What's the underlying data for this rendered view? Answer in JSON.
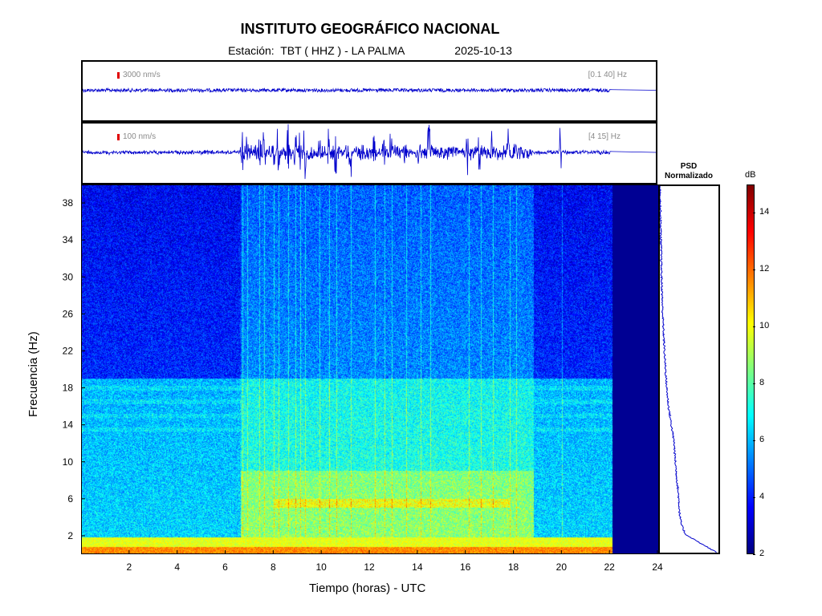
{
  "header": {
    "title": "INSTITUTO GEOGRÁFICO NACIONAL",
    "station_label": "Estación:",
    "station": "TBT ( HHZ ) - LA PALMA",
    "date": "2025-10-13"
  },
  "trace1": {
    "scale": "3000 nm/s",
    "band": "[0.1 40] Hz"
  },
  "trace2": {
    "scale": "100 nm/s",
    "band": "[4 15] Hz"
  },
  "chart_data": [
    {
      "type": "heatmap",
      "name": "spectrogram",
      "xlabel": "Tiempo (horas) - UTC",
      "ylabel": "Frecuencia  (Hz)",
      "xlim": [
        0,
        24
      ],
      "ylim": [
        0,
        40
      ],
      "x_ticks": [
        "2",
        "4",
        "6",
        "8",
        "10",
        "12",
        "14",
        "16",
        "18",
        "20",
        "22",
        "24"
      ],
      "y_ticks": [
        "2",
        "6",
        "10",
        "14",
        "18",
        "22",
        "26",
        "30",
        "34",
        "38"
      ],
      "data_end_hour": 22.1,
      "activity_window_hours": [
        6.6,
        18.8
      ],
      "transient_lines_hours": [
        6.7,
        6.9,
        7.4,
        7.6,
        8.0,
        8.2,
        8.6,
        8.9,
        9.1,
        9.3,
        9.9,
        10.3,
        10.6,
        11.2,
        12.2,
        12.6,
        12.9,
        13.5,
        14.1,
        14.5,
        16.1,
        16.6,
        17.1,
        17.8,
        18.1,
        20.0
      ]
    },
    {
      "type": "line",
      "name": "psd",
      "title": "PSD Normalizado",
      "description_values_freq_hz": [
        0,
        1,
        2,
        3,
        4,
        6,
        8,
        10,
        12,
        14,
        16,
        18,
        20,
        22,
        26,
        30,
        34,
        38,
        40
      ],
      "values_norm": [
        1.0,
        0.72,
        0.45,
        0.38,
        0.35,
        0.33,
        0.3,
        0.27,
        0.25,
        0.2,
        0.15,
        0.12,
        0.1,
        0.08,
        0.05,
        0.03,
        0.02,
        0.01,
        0.0
      ]
    },
    {
      "type": "colorbar",
      "name": "colorbar",
      "label": "dB",
      "range": [
        2,
        15
      ],
      "ticks": [
        "2",
        "4",
        "6",
        "8",
        "10",
        "12",
        "14"
      ],
      "colors": [
        "#00007f",
        "#0000ff",
        "#007fff",
        "#00ffff",
        "#7fff7f",
        "#ffff00",
        "#ff7f00",
        "#ff0000",
        "#7f0000"
      ]
    }
  ]
}
